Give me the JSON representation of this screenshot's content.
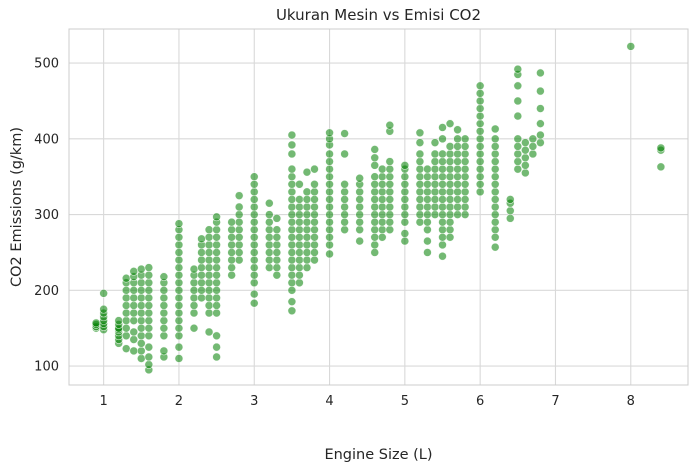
{
  "chart_data": {
    "type": "scatter",
    "title": "Ukuran Mesin vs Emisi CO2",
    "xlabel": "Engine Size (L)",
    "ylabel": "CO2 Emissions (g/km)",
    "xlim": [
      0.54,
      8.76
    ],
    "ylim": [
      75,
      545
    ],
    "xticks": [
      1,
      2,
      3,
      4,
      5,
      6,
      7,
      8
    ],
    "yticks": [
      100,
      200,
      300,
      400,
      500
    ],
    "grid": true,
    "point_color": "#008000",
    "point_alpha": 0.55,
    "series": [
      {
        "columns": [
          {
            "x": 0.9,
            "y": [
              150,
              152,
              155,
              157
            ]
          },
          {
            "x": 1.0,
            "y": [
              148,
              152,
              156,
              160,
              165,
              170,
              175,
              196
            ]
          },
          {
            "x": 1.2,
            "y": [
              130,
              135,
              140,
              145,
              148,
              150,
              155,
              160
            ]
          },
          {
            "x": 1.3,
            "y": [
              123,
              140,
              150,
              160,
              170,
              180,
              190,
              200,
              210,
              216
            ]
          },
          {
            "x": 1.4,
            "y": [
              120,
              135,
              145,
              160,
              170,
              180,
              190,
              200,
              210,
              218,
              225
            ]
          },
          {
            "x": 1.5,
            "y": [
              110,
              120,
              130,
              140,
              150,
              160,
              170,
              180,
              190,
              200,
              210,
              220,
              228
            ]
          },
          {
            "x": 1.6,
            "y": [
              95,
              102,
              112,
              125,
              140,
              150,
              160,
              170,
              180,
              190,
              200,
              210,
              220,
              230
            ]
          },
          {
            "x": 1.8,
            "y": [
              112,
              120,
              140,
              150,
              160,
              170,
              180,
              190,
              200,
              210,
              218
            ]
          },
          {
            "x": 2.0,
            "y": [
              110,
              125,
              140,
              150,
              160,
              170,
              180,
              190,
              200,
              210,
              220,
              230,
              240,
              250,
              260,
              270,
              280,
              288
            ]
          },
          {
            "x": 2.2,
            "y": [
              150,
              170,
              180,
              190,
              200,
              210,
              220,
              228
            ]
          },
          {
            "x": 2.3,
            "y": [
              190,
              200,
              210,
              220,
              230,
              240,
              250,
              260,
              268
            ]
          },
          {
            "x": 2.4,
            "y": [
              145,
              170,
              180,
              190,
              200,
              210,
              220,
              230,
              240,
              250,
              260,
              270,
              280
            ]
          },
          {
            "x": 2.5,
            "y": [
              112,
              125,
              140,
              170,
              180,
              190,
              200,
              210,
              220,
              230,
              240,
              250,
              260,
              270,
              280,
              290,
              297
            ]
          },
          {
            "x": 2.7,
            "y": [
              220,
              230,
              240,
              250,
              260,
              270,
              280,
              290
            ]
          },
          {
            "x": 2.8,
            "y": [
              240,
              250,
              260,
              270,
              280,
              290,
              300,
              310,
              325
            ]
          },
          {
            "x": 3.0,
            "y": [
              183,
              195,
              210,
              220,
              230,
              240,
              250,
              260,
              270,
              280,
              290,
              300,
              310,
              320,
              330,
              340,
              350
            ]
          },
          {
            "x": 3.2,
            "y": [
              230,
              240,
              250,
              260,
              270,
              280,
              290,
              300,
              315
            ]
          },
          {
            "x": 3.3,
            "y": [
              220,
              230,
              240,
              250,
              260,
              270,
              280,
              295
            ]
          },
          {
            "x": 3.5,
            "y": [
              173,
              185,
              200,
              210,
              220,
              230,
              240,
              250,
              260,
              270,
              280,
              290,
              300,
              310,
              320,
              330,
              340,
              350,
              360,
              380,
              392,
              405
            ]
          },
          {
            "x": 3.6,
            "y": [
              210,
              220,
              230,
              240,
              250,
              260,
              270,
              280,
              290,
              300,
              310,
              320,
              340
            ]
          },
          {
            "x": 3.7,
            "y": [
              230,
              240,
              250,
              260,
              270,
              280,
              290,
              300,
              310,
              320,
              330,
              356
            ]
          },
          {
            "x": 3.8,
            "y": [
              240,
              250,
              260,
              270,
              280,
              290,
              300,
              310,
              320,
              330,
              340,
              360
            ]
          },
          {
            "x": 4.0,
            "y": [
              248,
              260,
              270,
              280,
              290,
              300,
              310,
              320,
              330,
              340,
              350,
              360,
              370,
              380,
              392,
              400,
              408
            ]
          },
          {
            "x": 4.2,
            "y": [
              280,
              290,
              300,
              310,
              320,
              330,
              340,
              380,
              407
            ]
          },
          {
            "x": 4.4,
            "y": [
              265,
              280,
              290,
              300,
              310,
              320,
              330,
              340,
              348
            ]
          },
          {
            "x": 4.6,
            "y": [
              250,
              260,
              270,
              280,
              290,
              300,
              310,
              320,
              330,
              340,
              350,
              365,
              375,
              386
            ]
          },
          {
            "x": 4.7,
            "y": [
              270,
              280,
              290,
              300,
              310,
              320,
              330,
              340,
              350,
              360
            ]
          },
          {
            "x": 4.8,
            "y": [
              280,
              290,
              300,
              310,
              320,
              330,
              340,
              350,
              360,
              370,
              410,
              418
            ]
          },
          {
            "x": 5.0,
            "y": [
              265,
              275,
              290,
              300,
              310,
              320,
              330,
              340,
              350,
              360,
              365
            ]
          },
          {
            "x": 5.2,
            "y": [
              290,
              300,
              310,
              320,
              330,
              340,
              350,
              360,
              370,
              380,
              395,
              408
            ]
          },
          {
            "x": 5.3,
            "y": [
              250,
              265,
              280,
              290,
              300,
              310,
              320,
              330,
              340,
              350,
              360
            ]
          },
          {
            "x": 5.4,
            "y": [
              300,
              310,
              320,
              330,
              340,
              350,
              360,
              370,
              380,
              395
            ]
          },
          {
            "x": 5.5,
            "y": [
              245,
              260,
              270,
              280,
              290,
              300,
              310,
              320,
              330,
              340,
              350,
              360,
              370,
              380,
              400,
              415
            ]
          },
          {
            "x": 5.6,
            "y": [
              270,
              280,
              290,
              300,
              310,
              320,
              330,
              340,
              350,
              360,
              370,
              380,
              390,
              420
            ]
          },
          {
            "x": 5.7,
            "y": [
              300,
              310,
              320,
              330,
              340,
              350,
              360,
              370,
              380,
              390,
              400,
              412
            ]
          },
          {
            "x": 5.8,
            "y": [
              300,
              310,
              320,
              330,
              340,
              350,
              360,
              370,
              380,
              390,
              400
            ]
          },
          {
            "x": 6.0,
            "y": [
              330,
              340,
              350,
              360,
              370,
              380,
              390,
              400,
              410,
              420,
              430,
              440,
              450,
              460,
              470
            ]
          },
          {
            "x": 6.2,
            "y": [
              257,
              270,
              280,
              290,
              300,
              310,
              320,
              330,
              340,
              350,
              360,
              370,
              380,
              390,
              400,
              413
            ]
          },
          {
            "x": 6.4,
            "y": [
              295,
              305,
              315,
              320
            ]
          },
          {
            "x": 6.5,
            "y": [
              360,
              370,
              380,
              390,
              400,
              430,
              450,
              470,
              485,
              492
            ]
          },
          {
            "x": 6.6,
            "y": [
              355,
              365,
              375,
              385,
              395
            ]
          },
          {
            "x": 6.7,
            "y": [
              380,
              390,
              400
            ]
          },
          {
            "x": 6.8,
            "y": [
              395,
              405,
              420,
              440,
              463,
              487
            ]
          },
          {
            "x": 8.0,
            "y": [
              522
            ]
          },
          {
            "x": 8.4,
            "y": [
              363,
              385,
              388
            ]
          }
        ]
      }
    ]
  }
}
